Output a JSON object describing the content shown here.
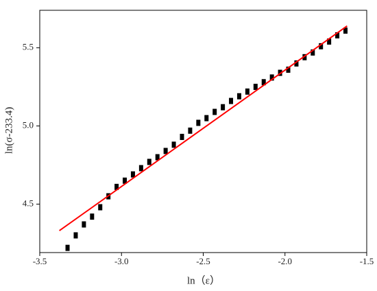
{
  "chart_data": {
    "type": "scatter",
    "xlabel": "ln（ε）",
    "ylabel": "ln(σ-233.4)",
    "xlim": [
      -3.5,
      -1.5
    ],
    "ylim": [
      4.19,
      5.74
    ],
    "xticks": [
      -3.5,
      {
        "value": -3,
        "label": "-3.0"
      },
      -2.5,
      {
        "value": -2,
        "label": "-2.0"
      },
      -1.5
    ],
    "yticks": [
      4.5,
      {
        "value": 5,
        "label": "5.0"
      },
      5.5
    ],
    "series": [
      {
        "mark": "square",
        "color": "#000000",
        "x": [
          -3.33,
          -3.28,
          -3.23,
          -3.18,
          -3.13,
          -3.08,
          -3.03,
          -2.98,
          -2.93,
          -2.88,
          -2.83,
          -2.78,
          -2.73,
          -2.68,
          -2.63,
          -2.58,
          -2.53,
          -2.48,
          -2.43,
          -2.38,
          -2.33,
          -2.28,
          -2.23,
          -2.18,
          -2.13,
          -2.08,
          -2.03,
          -1.98,
          -1.93,
          -1.88,
          -1.83,
          -1.78,
          -1.73,
          -1.68,
          -1.63
        ],
        "values": [
          4.22,
          4.3,
          4.37,
          4.42,
          4.48,
          4.55,
          4.61,
          4.65,
          4.69,
          4.73,
          4.77,
          4.8,
          4.84,
          4.88,
          4.93,
          4.97,
          5.02,
          5.05,
          5.09,
          5.12,
          5.16,
          5.19,
          5.22,
          5.25,
          5.28,
          5.31,
          5.34,
          5.36,
          5.4,
          5.44,
          5.47,
          5.51,
          5.54,
          5.58,
          5.61
        ]
      },
      {
        "mark": "line",
        "color": "#ff0000",
        "x": [
          -3.38,
          -1.62
        ],
        "values": [
          4.33,
          5.64
        ]
      }
    ]
  }
}
